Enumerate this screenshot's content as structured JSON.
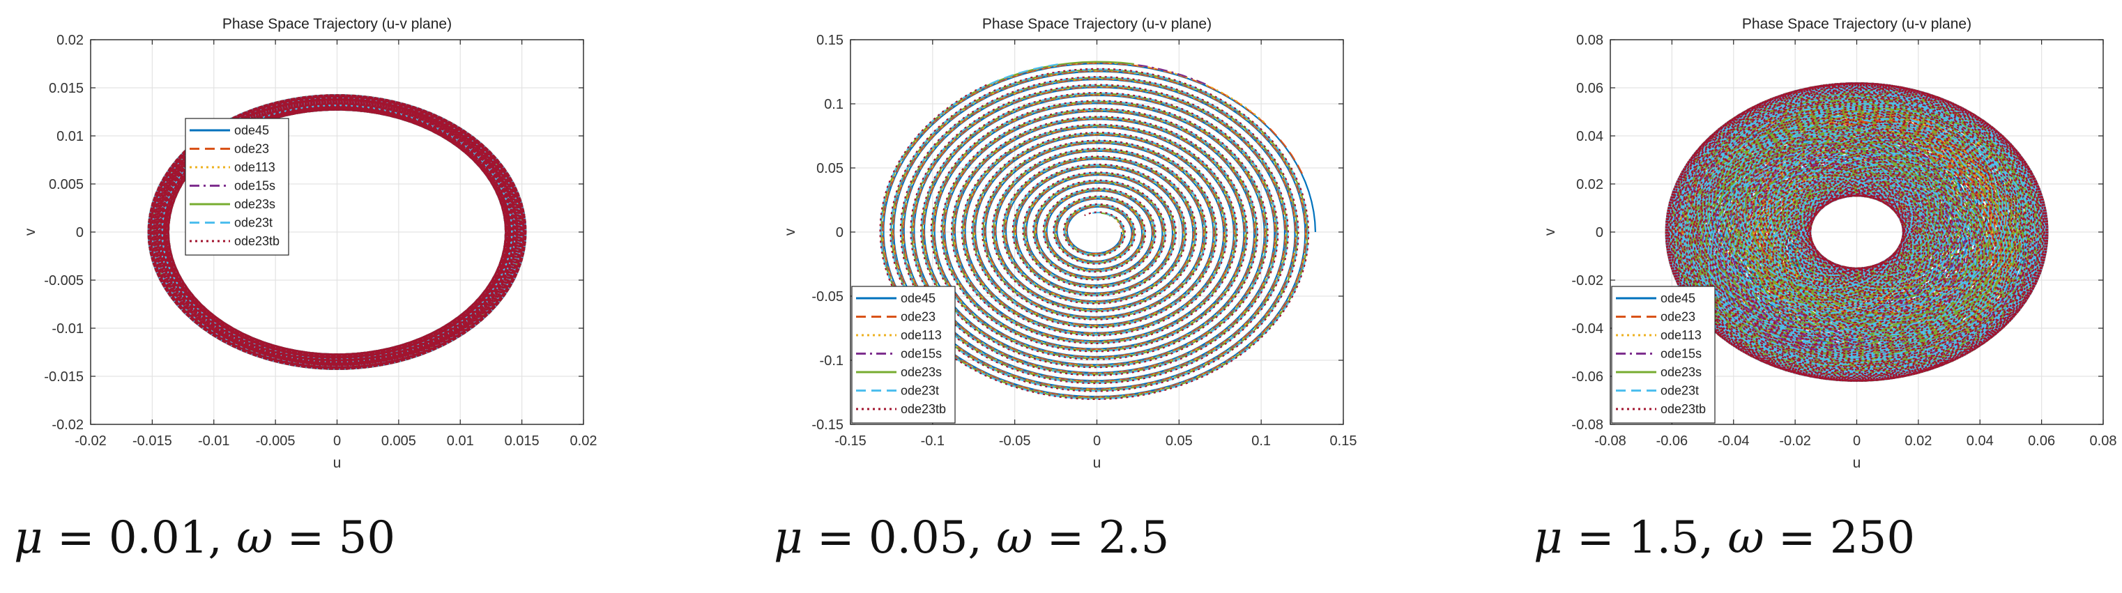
{
  "chart_data": [
    {
      "type": "line",
      "title": "Phase Space Trajectory (u-v plane)",
      "xlabel": "u",
      "ylabel": "v",
      "xlim": [
        -0.02,
        0.02
      ],
      "ylim": [
        -0.02,
        0.02
      ],
      "xticks": [
        "-0.02",
        "-0.015",
        "-0.01",
        "-0.005",
        "0",
        "0.005",
        "0.01",
        "0.015",
        "0.02"
      ],
      "yticks": [
        "0.02",
        "0.015",
        "0.01",
        "0.005",
        "0",
        "-0.005",
        "-0.01",
        "-0.015",
        "-0.02"
      ],
      "grid": true,
      "legend_position": "center",
      "trajectory": {
        "shape": "ring",
        "r_inner": 0.0137,
        "r_outer": 0.0153,
        "turns": 60
      },
      "series": [
        {
          "name": "ode45",
          "color": "#0072BD",
          "dash": "solid"
        },
        {
          "name": "ode23",
          "color": "#D95319",
          "dash": "dashed"
        },
        {
          "name": "ode113",
          "color": "#EDB120",
          "dash": "dotted"
        },
        {
          "name": "ode15s",
          "color": "#7E2F8E",
          "dash": "dashdot"
        },
        {
          "name": "ode23s",
          "color": "#77AC30",
          "dash": "solid"
        },
        {
          "name": "ode23t",
          "color": "#4DBEEE",
          "dash": "dashed"
        },
        {
          "name": "ode23tb",
          "color": "#A2142F",
          "dash": "dotted"
        }
      ],
      "caption": {
        "mu_label": "μ",
        "mu_value": "0.01",
        "omega_label": "ω",
        "omega_value": "50"
      }
    },
    {
      "type": "line",
      "title": "Phase Space Trajectory (u-v plane)",
      "xlabel": "u",
      "ylabel": "v",
      "xlim": [
        -0.15,
        0.15
      ],
      "ylim": [
        -0.15,
        0.15
      ],
      "xticks": [
        "-0.15",
        "-0.1",
        "-0.05",
        "0",
        "0.05",
        "0.1",
        "0.15"
      ],
      "yticks": [
        "0.15",
        "0.1",
        "0.05",
        "0",
        "-0.05",
        "-0.1",
        "-0.15"
      ],
      "grid": true,
      "legend_position": "bottom-left",
      "trajectory": {
        "shape": "spiral",
        "r_inner": 0.015,
        "r_outer": 0.133,
        "turns": 19
      },
      "series": [
        {
          "name": "ode45",
          "color": "#0072BD",
          "dash": "solid"
        },
        {
          "name": "ode23",
          "color": "#D95319",
          "dash": "dashed"
        },
        {
          "name": "ode113",
          "color": "#EDB120",
          "dash": "dotted"
        },
        {
          "name": "ode15s",
          "color": "#7E2F8E",
          "dash": "dashdot"
        },
        {
          "name": "ode23s",
          "color": "#77AC30",
          "dash": "solid"
        },
        {
          "name": "ode23t",
          "color": "#4DBEEE",
          "dash": "dashed"
        },
        {
          "name": "ode23tb",
          "color": "#A2142F",
          "dash": "dotted"
        }
      ],
      "caption": {
        "mu_label": "μ",
        "mu_value": "0.05",
        "omega_label": "ω",
        "omega_value": "2.5"
      }
    },
    {
      "type": "line",
      "title": "Phase Space Trajectory (u-v plane)",
      "xlabel": "u",
      "ylabel": "v",
      "xlim": [
        -0.08,
        0.08
      ],
      "ylim": [
        -0.08,
        0.08
      ],
      "xticks": [
        "-0.08",
        "-0.06",
        "-0.04",
        "-0.02",
        "0",
        "0.02",
        "0.04",
        "0.06",
        "0.08"
      ],
      "yticks": [
        "0.08",
        "0.06",
        "0.04",
        "0.02",
        "0",
        "-0.02",
        "-0.04",
        "-0.06",
        "-0.08"
      ],
      "grid": true,
      "legend_position": "bottom-left",
      "trajectory": {
        "shape": "annulus",
        "r_inner": 0.015,
        "r_outer": 0.062,
        "turns": 90
      },
      "series": [
        {
          "name": "ode45",
          "color": "#0072BD",
          "dash": "solid"
        },
        {
          "name": "ode23",
          "color": "#D95319",
          "dash": "dashed"
        },
        {
          "name": "ode113",
          "color": "#EDB120",
          "dash": "dotted"
        },
        {
          "name": "ode15s",
          "color": "#7E2F8E",
          "dash": "dashdot"
        },
        {
          "name": "ode23s",
          "color": "#77AC30",
          "dash": "solid"
        },
        {
          "name": "ode23t",
          "color": "#4DBEEE",
          "dash": "dashed"
        },
        {
          "name": "ode23tb",
          "color": "#A2142F",
          "dash": "dotted"
        }
      ],
      "caption": {
        "mu_label": "μ",
        "mu_value": "1.5",
        "omega_label": "ω",
        "omega_value": "250"
      }
    }
  ]
}
